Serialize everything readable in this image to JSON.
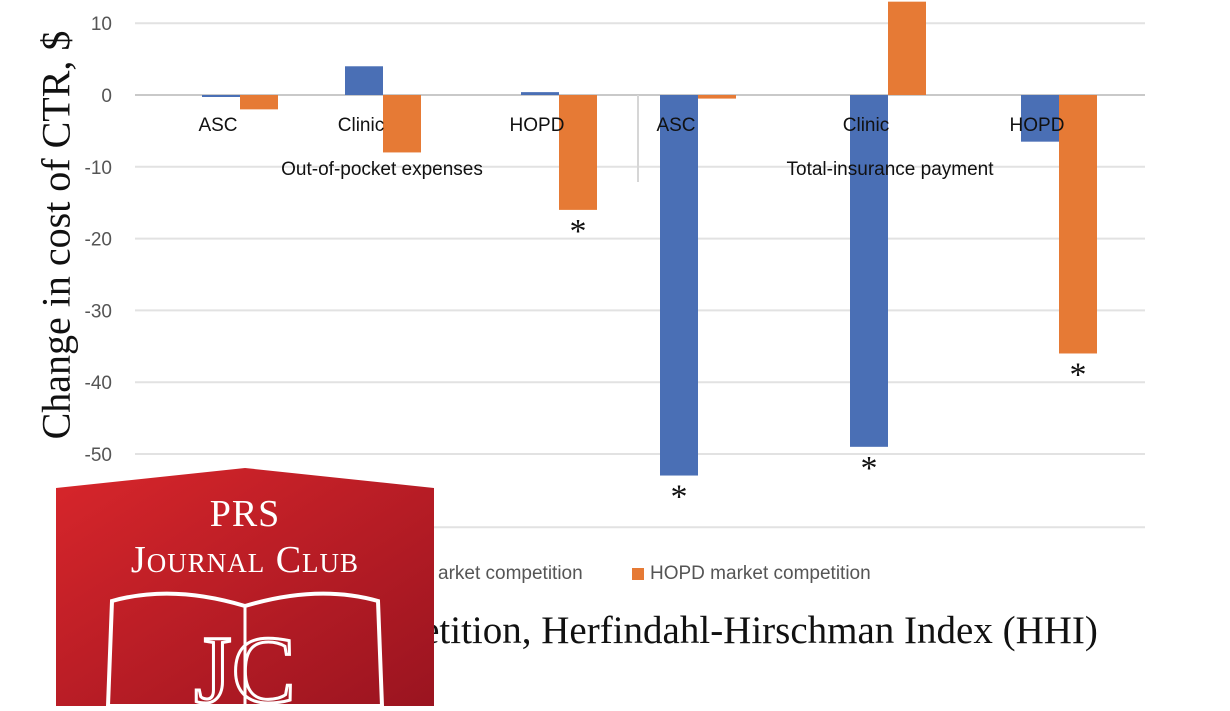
{
  "chart_data": {
    "type": "bar",
    "ylabel": "Change in cost of CTR, $",
    "xlabel": "etition, Herfindahl-Hirschman Index (HHI)",
    "ylim": [
      -60,
      14
    ],
    "yticks": [
      10,
      0,
      -10,
      -20,
      -30,
      -40,
      -50
    ],
    "grid": true,
    "groups": [
      {
        "label": "Out-of-pocket expenses",
        "categories": [
          "ASC",
          "Clinic",
          "HOPD"
        ]
      },
      {
        "label": "Total-insurance payment",
        "categories": [
          "ASC",
          "Clinic",
          "HOPD"
        ]
      }
    ],
    "categories": [
      "ASC",
      "Clinic",
      "HOPD",
      "ASC",
      "Clinic",
      "HOPD"
    ],
    "series": [
      {
        "name": "arket competition",
        "color": "#4a6fb5",
        "values": [
          0,
          4,
          0.4,
          -53,
          -49,
          -6.5
        ]
      },
      {
        "name": "HOPD market competition",
        "color": "#e67a35",
        "values": [
          -2,
          -8,
          -16,
          -0.5,
          13,
          -36
        ]
      }
    ],
    "significance_marker": "*",
    "significant": [
      {
        "category_index": 2,
        "series": 1
      },
      {
        "category_index": 3,
        "series": 0
      },
      {
        "category_index": 4,
        "series": 0
      },
      {
        "category_index": 5,
        "series": 1
      }
    ]
  },
  "badge": {
    "line1": "PRS",
    "line2": "Journal Club",
    "monogram": "JC"
  }
}
